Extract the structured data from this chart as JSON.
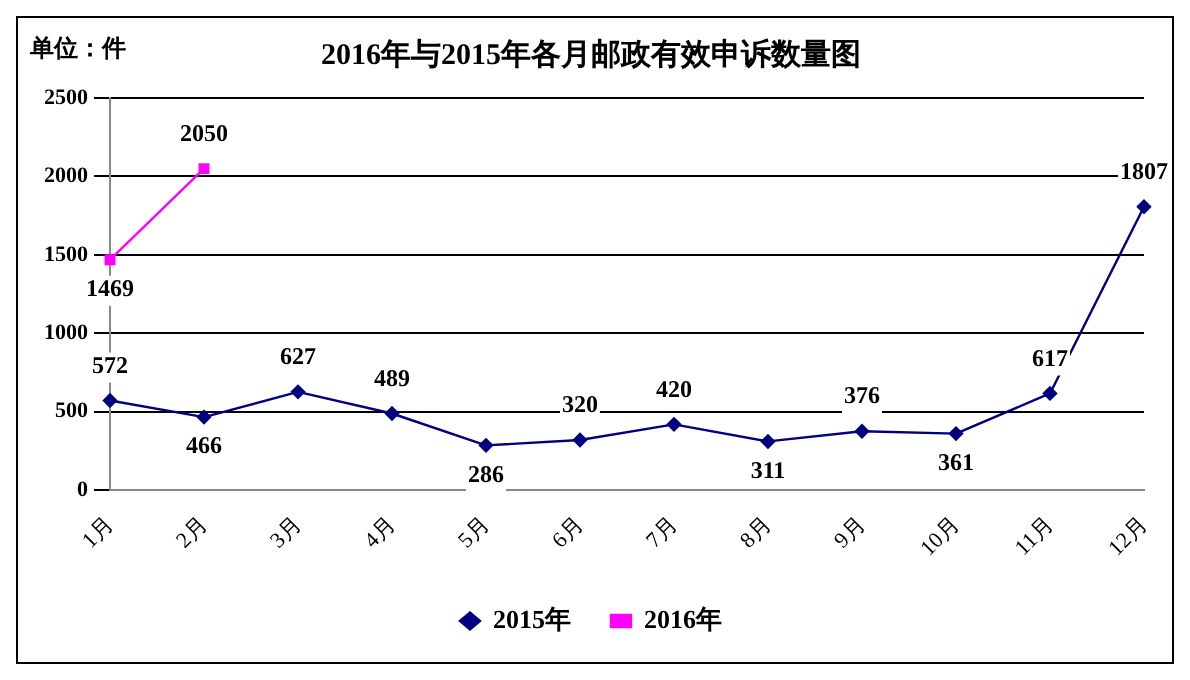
{
  "chart_data": {
    "type": "line",
    "title": "2016年与2015年各月邮政有效申诉数量图",
    "ylabel": "单位：件",
    "categories": [
      "1月",
      "2月",
      "3月",
      "4月",
      "5月",
      "6月",
      "7月",
      "8月",
      "9月",
      "10月",
      "11月",
      "12月"
    ],
    "series": [
      {
        "name": "2015年",
        "color": "#000080",
        "marker": "diamond",
        "values": [
          572,
          466,
          627,
          489,
          286,
          320,
          420,
          311,
          376,
          361,
          617,
          1807
        ]
      },
      {
        "name": "2016年",
        "color": "#ff00ff",
        "marker": "square",
        "values": [
          1469,
          2050,
          null,
          null,
          null,
          null,
          null,
          null,
          null,
          null,
          null,
          null
        ]
      }
    ],
    "ylim": [
      0,
      2500
    ],
    "yticks": [
      0,
      500,
      1000,
      1500,
      2000,
      2500
    ],
    "grid": "y",
    "legend": "bottom",
    "data_labels": true,
    "line_style": "solid"
  }
}
